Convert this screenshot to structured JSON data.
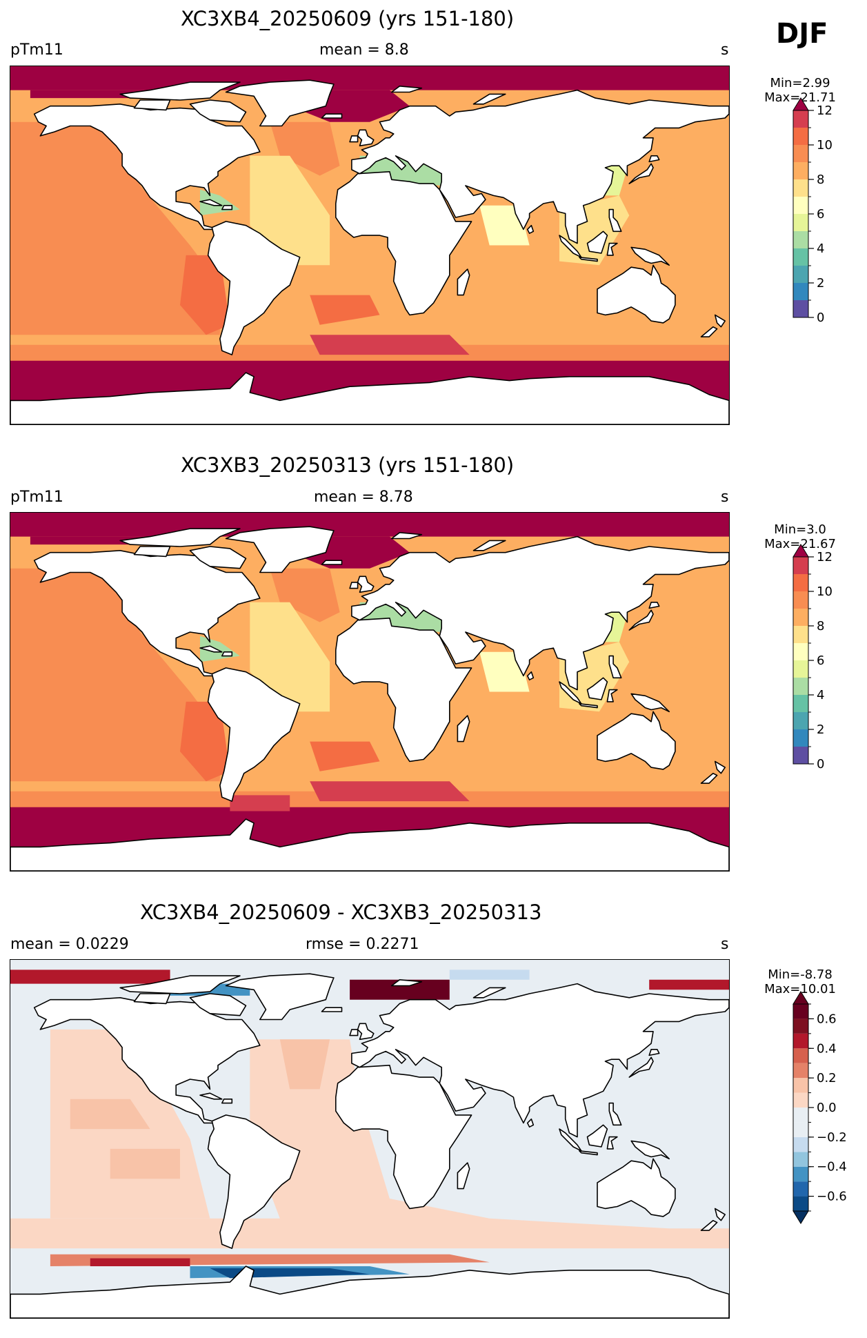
{
  "season": "DJF",
  "panels": [
    {
      "title": "XC3XB4_20250609 (yrs 151-180)",
      "left_label": "pTm11",
      "center_label": "mean = 8.8",
      "right_label": "s",
      "min_label": "Min=2.99",
      "max_label": "Max=21.71"
    },
    {
      "title": "XC3XB3_20250313 (yrs 151-180)",
      "left_label": "pTm11",
      "center_label": "mean = 8.78",
      "right_label": "s",
      "min_label": "Min=3.0",
      "max_label": "Max=21.67"
    },
    {
      "title": "XC3XB4_20250609 - XC3XB3_20250313",
      "left_label": "mean = 0.0229",
      "center_label": "rmse = 0.2271",
      "right_label": "s",
      "min_label": "Min=-8.78",
      "max_label": "Max=10.01"
    }
  ],
  "chart_data": [
    {
      "type": "heatmap",
      "title": "XC3XB4_20250609 (yrs 151-180)",
      "variable": "pTm11",
      "units": "s",
      "mean": 8.8,
      "min": 2.99,
      "max": 21.71,
      "colorbar": {
        "levels": [
          0,
          1,
          2,
          3,
          4,
          5,
          6,
          7,
          8,
          9,
          10,
          11,
          12
        ],
        "tick_labels": [
          "0",
          "2",
          "4",
          "6",
          "8",
          "10",
          "12"
        ],
        "colors": [
          "#5e4fa2",
          "#3288bd",
          "#4ca5b0",
          "#66c2a5",
          "#abdda4",
          "#e6f598",
          "#ffffbf",
          "#fee08b",
          "#fdae61",
          "#f88d52",
          "#f46d43",
          "#d53e4f"
        ],
        "over_color": "#9e0142",
        "extend": "max"
      }
    },
    {
      "type": "heatmap",
      "title": "XC3XB3_20250313 (yrs 151-180)",
      "variable": "pTm11",
      "units": "s",
      "mean": 8.78,
      "min": 3.0,
      "max": 21.67,
      "colorbar": {
        "levels": [
          0,
          1,
          2,
          3,
          4,
          5,
          6,
          7,
          8,
          9,
          10,
          11,
          12
        ],
        "tick_labels": [
          "0",
          "2",
          "4",
          "6",
          "8",
          "10",
          "12"
        ],
        "colors": [
          "#5e4fa2",
          "#3288bd",
          "#4ca5b0",
          "#66c2a5",
          "#abdda4",
          "#e6f598",
          "#ffffbf",
          "#fee08b",
          "#fdae61",
          "#f88d52",
          "#f46d43",
          "#d53e4f"
        ],
        "over_color": "#9e0142",
        "extend": "max"
      }
    },
    {
      "type": "heatmap",
      "title": "XC3XB4_20250609 - XC3XB3_20250313",
      "units": "s",
      "mean": 0.0229,
      "rmse": 0.2271,
      "min": -8.78,
      "max": 10.01,
      "colorbar": {
        "levels": [
          -0.7,
          -0.6,
          -0.5,
          -0.4,
          -0.3,
          -0.2,
          -0.1,
          0.0,
          0.1,
          0.2,
          0.3,
          0.4,
          0.5,
          0.6,
          0.7
        ],
        "tick_labels": [
          "−0.6",
          "−0.4",
          "−0.2",
          "0.0",
          "0.2",
          "0.4",
          "0.6"
        ],
        "tick_values": [
          -0.6,
          -0.4,
          -0.2,
          0.0,
          0.2,
          0.4,
          0.6
        ],
        "colors": [
          "#0b4a86",
          "#2166ac",
          "#4393c3",
          "#92c5de",
          "#c6dbef",
          "#e8eef3",
          "#e8eef3",
          "#fbd7c4",
          "#f8c3a8",
          "#e58268",
          "#d6604d",
          "#b2182b",
          "#7d1020",
          "#67001f"
        ],
        "under_color": "#053061",
        "over_color": "#67001f",
        "extend": "both"
      }
    }
  ],
  "colors": {
    "land": "#ffffff",
    "coastline": "#000000"
  }
}
